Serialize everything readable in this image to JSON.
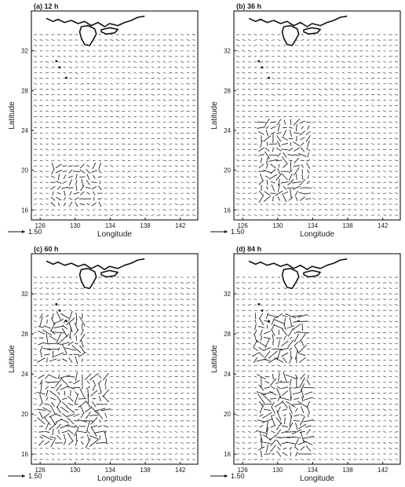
{
  "figure": {
    "x_tick_labels": [
      "126",
      "130",
      "134",
      "138",
      "142"
    ],
    "y_tick_labels": [
      "16",
      "20",
      "24",
      "28",
      "32"
    ],
    "xlabel": "Longitude",
    "ylabel": "Latitude",
    "reference_vector_label": "1.50"
  },
  "chart_data": [
    {
      "type": "vector",
      "title": "(a) 12 h",
      "xlabel": "Longitude",
      "ylabel": "Latitude",
      "xlim": [
        125,
        144
      ],
      "ylim": [
        15,
        36
      ],
      "reference_vector": 1.5,
      "x_ticks": [
        126,
        130,
        134,
        138,
        142
      ],
      "y_ticks": [
        16,
        20,
        24,
        28,
        32
      ],
      "disturbance_regions": [
        {
          "lon": [
            127,
            133
          ],
          "lat": [
            16.5,
            20.5
          ],
          "strength": "weak"
        }
      ]
    },
    {
      "type": "vector",
      "title": "(b) 36 h",
      "xlabel": "Longitude",
      "ylabel": "Latitude",
      "xlim": [
        125,
        144
      ],
      "ylim": [
        15,
        36
      ],
      "reference_vector": 1.5,
      "x_ticks": [
        126,
        130,
        134,
        138,
        142
      ],
      "y_ticks": [
        16,
        20,
        24,
        28,
        32
      ],
      "disturbance_regions": [
        {
          "lon": [
            128,
            134
          ],
          "lat": [
            17,
            25
          ],
          "strength": "moderate"
        }
      ]
    },
    {
      "type": "vector",
      "title": "(c) 60 h",
      "xlabel": "Longitude",
      "ylabel": "Latitude",
      "xlim": [
        125,
        144
      ],
      "ylim": [
        15,
        36
      ],
      "reference_vector": 1.5,
      "x_ticks": [
        126,
        130,
        134,
        138,
        142
      ],
      "y_ticks": [
        16,
        20,
        24,
        28,
        32
      ],
      "disturbance_regions": [
        {
          "lon": [
            126,
            131
          ],
          "lat": [
            25,
            30
          ],
          "strength": "strong"
        },
        {
          "lon": [
            126,
            134
          ],
          "lat": [
            17,
            24
          ],
          "strength": "strong"
        }
      ]
    },
    {
      "type": "vector",
      "title": "(d) 84 h",
      "xlabel": "Longitude",
      "ylabel": "Latitude",
      "xlim": [
        125,
        144
      ],
      "ylim": [
        15,
        36
      ],
      "reference_vector": 1.5,
      "x_ticks": [
        126,
        130,
        134,
        138,
        142
      ],
      "y_ticks": [
        16,
        20,
        24,
        28,
        32
      ],
      "disturbance_regions": [
        {
          "lon": [
            127,
            133
          ],
          "lat": [
            25,
            30
          ],
          "strength": "strong"
        },
        {
          "lon": [
            128,
            134
          ],
          "lat": [
            16,
            24
          ],
          "strength": "strong"
        }
      ]
    }
  ]
}
